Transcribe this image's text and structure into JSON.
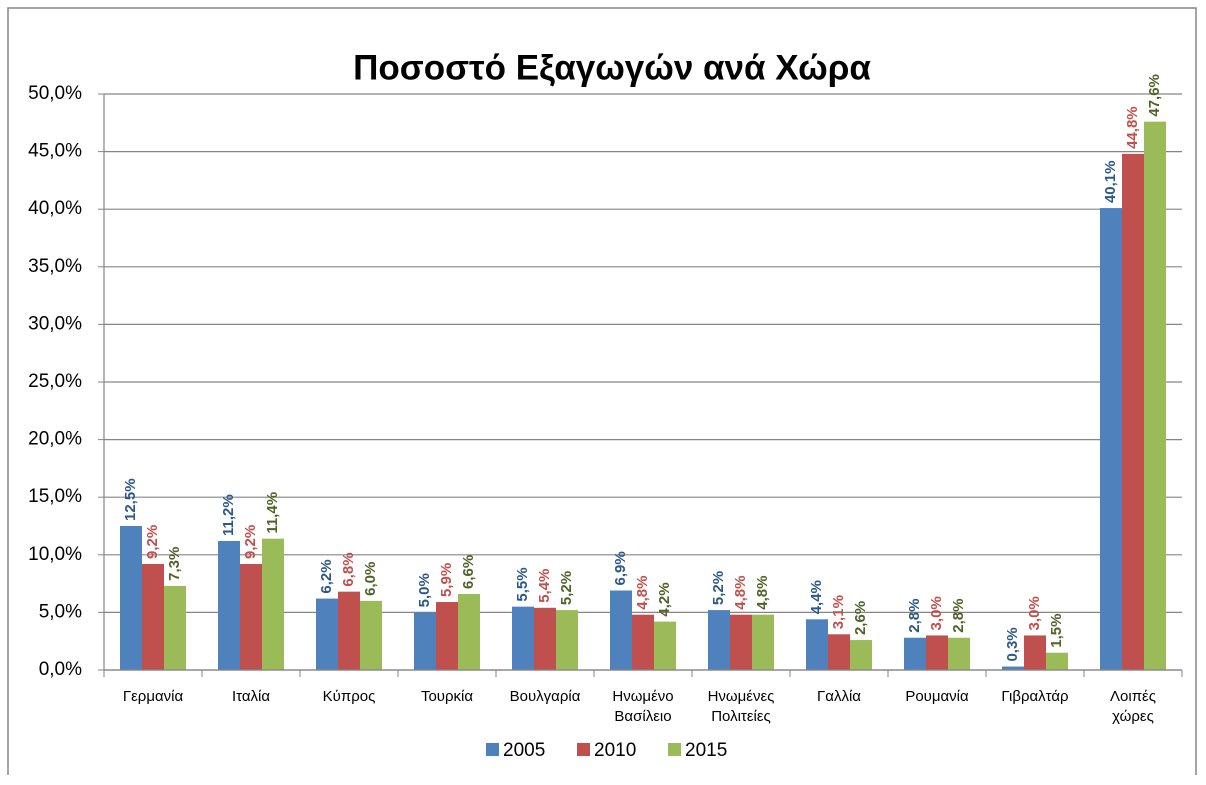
{
  "chart_data": {
    "type": "bar",
    "title": "Ποσοστό Εξαγωγών ανά Χώρα",
    "categories": [
      "Γερμανία",
      "Ιταλία",
      "Κύπρος",
      "Τουρκία",
      "Βουλγαρία",
      "Ηνωμένο Βασίλειο",
      "Ηνωμένες Πολιτείες",
      "Γαλλία",
      "Ρουμανία",
      "Γιβραλτάρ",
      "Λοιπές χώρες"
    ],
    "series": [
      {
        "name": "2005",
        "color": "#4f81bd",
        "label_color": "#2c5888",
        "values": [
          12.5,
          11.2,
          6.2,
          5.0,
          5.5,
          6.9,
          5.2,
          4.4,
          2.8,
          0.3,
          40.1
        ],
        "value_labels": [
          "12,5%",
          "11,2%",
          "6,2%",
          "5,0%",
          "5,5%",
          "6,9%",
          "5,2%",
          "4,4%",
          "2,8%",
          "0,3%",
          "40,1%"
        ]
      },
      {
        "name": "2010",
        "color": "#c0504d",
        "label_color": "#c0504d",
        "values": [
          9.2,
          9.2,
          6.8,
          5.9,
          5.4,
          4.8,
          4.8,
          3.1,
          3.0,
          3.0,
          44.8
        ],
        "value_labels": [
          "9,2%",
          "9,2%",
          "6,8%",
          "5,9%",
          "5,4%",
          "4,8%",
          "4,8%",
          "3,1%",
          "3,0%",
          "3,0%",
          "44,8%"
        ]
      },
      {
        "name": "2015",
        "color": "#9bbb59",
        "label_color": "#4f6228",
        "values": [
          7.3,
          11.4,
          6.0,
          6.6,
          5.2,
          4.2,
          4.8,
          2.6,
          2.8,
          1.5,
          47.6
        ],
        "value_labels": [
          "7,3%",
          "11,4%",
          "6,0%",
          "6,6%",
          "5,2%",
          "4,2%",
          "4,8%",
          "2,6%",
          "2,8%",
          "1,5%",
          "47,6%"
        ]
      }
    ],
    "ylim": [
      0,
      50
    ],
    "yticks": [
      {
        "value": 0,
        "label": "0,0%"
      },
      {
        "value": 5,
        "label": "5,0%"
      },
      {
        "value": 10,
        "label": "10,0%"
      },
      {
        "value": 15,
        "label": "15,0%"
      },
      {
        "value": 20,
        "label": "20,0%"
      },
      {
        "value": 25,
        "label": "25,0%"
      },
      {
        "value": 30,
        "label": "30,0%"
      },
      {
        "value": 35,
        "label": "35,0%"
      },
      {
        "value": 40,
        "label": "40,0%"
      },
      {
        "value": 45,
        "label": "45,0%"
      },
      {
        "value": 50,
        "label": "50,0%"
      }
    ],
    "grid": true,
    "legend": "bottom"
  }
}
